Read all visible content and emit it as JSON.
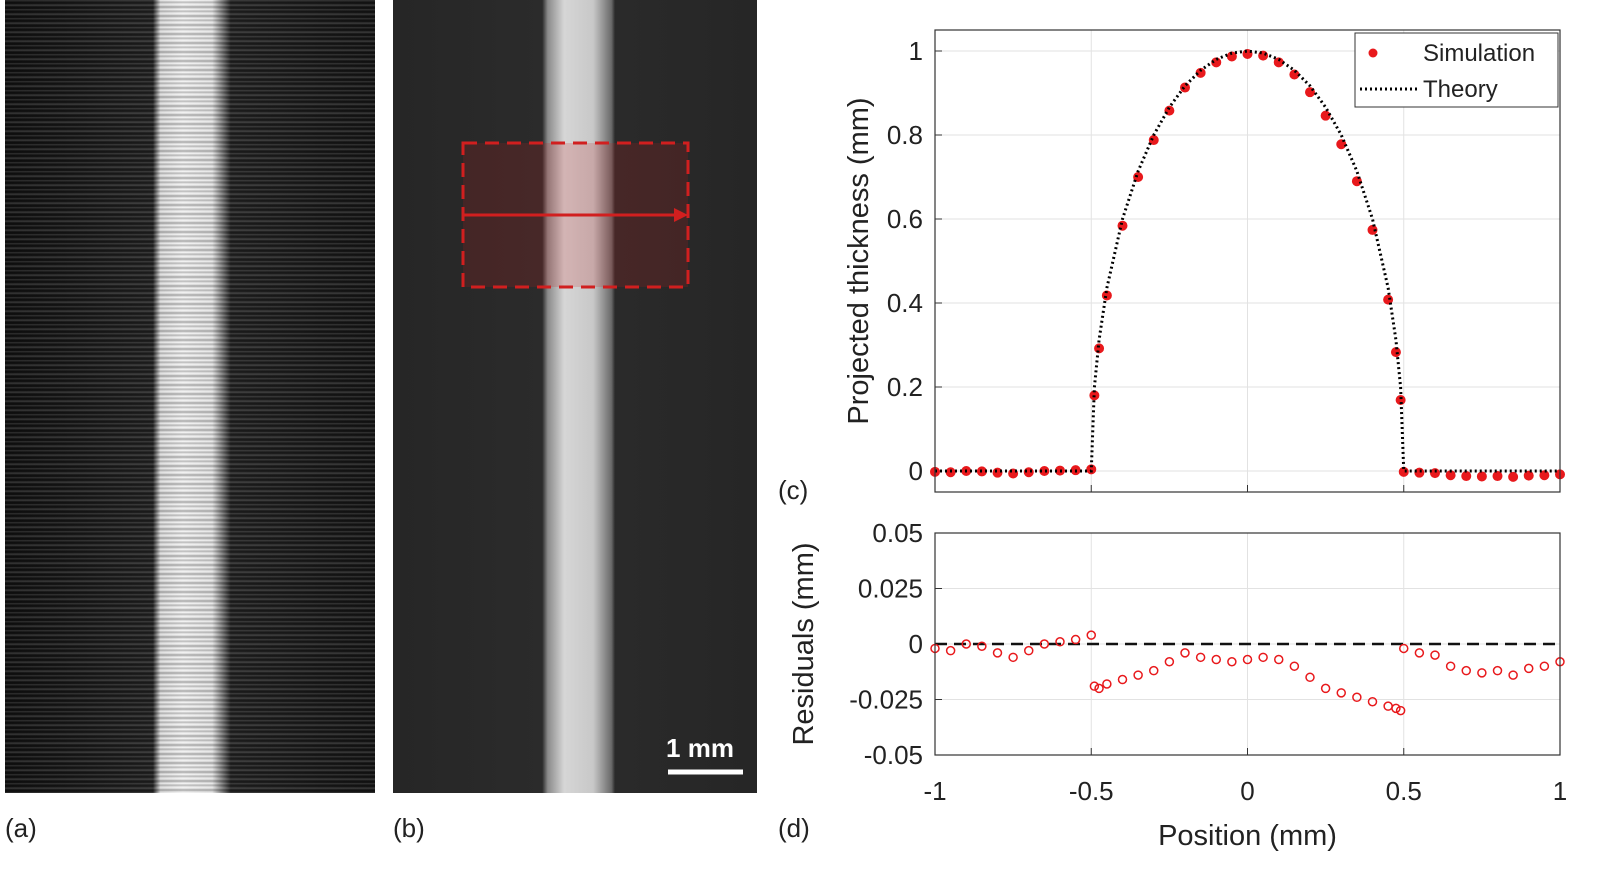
{
  "panels": {
    "labels": [
      "(a)",
      "(b)",
      "(c)",
      "(d)"
    ],
    "scale_bar": "1 mm"
  },
  "chart_data": [
    {
      "type": "scatter",
      "ylabel": "Projected thickness (mm)",
      "x": [
        -1,
        -0.95,
        -0.9,
        -0.85,
        -0.8,
        -0.75,
        -0.7,
        -0.65,
        -0.6,
        -0.55,
        -0.5,
        -0.49,
        -0.475,
        -0.45,
        -0.4,
        -0.35,
        -0.3,
        -0.25,
        -0.2,
        -0.15,
        -0.1,
        -0.05,
        0,
        0.05,
        0.1,
        0.15,
        0.2,
        0.25,
        0.3,
        0.35,
        0.4,
        0.45,
        0.475,
        0.49,
        0.5,
        0.55,
        0.6,
        0.65,
        0.7,
        0.75,
        0.8,
        0.85,
        0.9,
        0.95,
        1
      ],
      "series": [
        {
          "name": "Simulation",
          "color": "#e8191c",
          "mode": "markers",
          "marker": "filled",
          "values": [
            -0.002,
            -0.003,
            0,
            -0.001,
            -0.004,
            -0.006,
            -0.003,
            0,
            0.001,
            0.002,
            0.004,
            0.18,
            0.292,
            0.418,
            0.584,
            0.7,
            0.788,
            0.858,
            0.913,
            0.948,
            0.973,
            0.987,
            0.993,
            0.989,
            0.973,
            0.944,
            0.902,
            0.846,
            0.778,
            0.69,
            0.574,
            0.408,
            0.283,
            0.169,
            -0.002,
            -0.004,
            -0.005,
            -0.01,
            -0.012,
            -0.013,
            -0.012,
            -0.014,
            -0.011,
            -0.01,
            -0.008
          ]
        },
        {
          "name": "Theory",
          "color": "#000000",
          "mode": "line",
          "dash": "dotted",
          "values": [
            0,
            0,
            0,
            0,
            0,
            0,
            0,
            0,
            0,
            0,
            0,
            0.199,
            0.312,
            0.436,
            0.6,
            0.714,
            0.8,
            0.866,
            0.917,
            0.954,
            0.98,
            0.995,
            1,
            0.995,
            0.98,
            0.954,
            0.917,
            0.866,
            0.8,
            0.714,
            0.6,
            0.436,
            0.312,
            0.199,
            0,
            0,
            0,
            0,
            0,
            0,
            0,
            0,
            0,
            0,
            0
          ]
        }
      ],
      "xlim": [
        -1,
        1
      ],
      "xticks": [
        -1,
        -0.5,
        0,
        0.5,
        1
      ],
      "xtick_labels": false,
      "ylim": [
        -0.05,
        1.05
      ],
      "yticks": [
        0,
        0.2,
        0.4,
        0.6,
        0.8,
        1
      ],
      "grid": true,
      "legend": "upper right"
    },
    {
      "type": "scatter",
      "xlabel": "Position (mm)",
      "ylabel": "Residuals (mm)",
      "x": [
        -1,
        -0.95,
        -0.9,
        -0.85,
        -0.8,
        -0.75,
        -0.7,
        -0.65,
        -0.6,
        -0.55,
        -0.5,
        -0.49,
        -0.475,
        -0.45,
        -0.4,
        -0.35,
        -0.3,
        -0.25,
        -0.2,
        -0.15,
        -0.1,
        -0.05,
        0,
        0.05,
        0.1,
        0.15,
        0.2,
        0.25,
        0.3,
        0.35,
        0.4,
        0.45,
        0.475,
        0.49,
        0.5,
        0.55,
        0.6,
        0.65,
        0.7,
        0.75,
        0.8,
        0.85,
        0.9,
        0.95,
        1
      ],
      "series": [
        {
          "color": "#e8191c",
          "mode": "markers",
          "marker": "open",
          "values": [
            -0.002,
            -0.003,
            0,
            -0.001,
            -0.004,
            -0.006,
            -0.003,
            0,
            0.001,
            0.002,
            0.004,
            -0.019,
            -0.02,
            -0.018,
            -0.016,
            -0.014,
            -0.012,
            -0.008,
            -0.004,
            -0.006,
            -0.007,
            -0.008,
            -0.007,
            -0.006,
            -0.007,
            -0.01,
            -0.015,
            -0.02,
            -0.022,
            -0.024,
            -0.026,
            -0.028,
            -0.029,
            -0.03,
            -0.002,
            -0.004,
            -0.005,
            -0.01,
            -0.012,
            -0.013,
            -0.012,
            -0.014,
            -0.011,
            -0.01,
            -0.008
          ]
        }
      ],
      "xlim": [
        -1,
        1
      ],
      "xticks": [
        -1,
        -0.5,
        0,
        0.5,
        1
      ],
      "ylim": [
        -0.05,
        0.05
      ],
      "yticks": [
        -0.05,
        -0.025,
        0,
        0.025,
        0.05
      ],
      "hline": 0,
      "hline_dash": "dashed",
      "grid": true
    }
  ]
}
